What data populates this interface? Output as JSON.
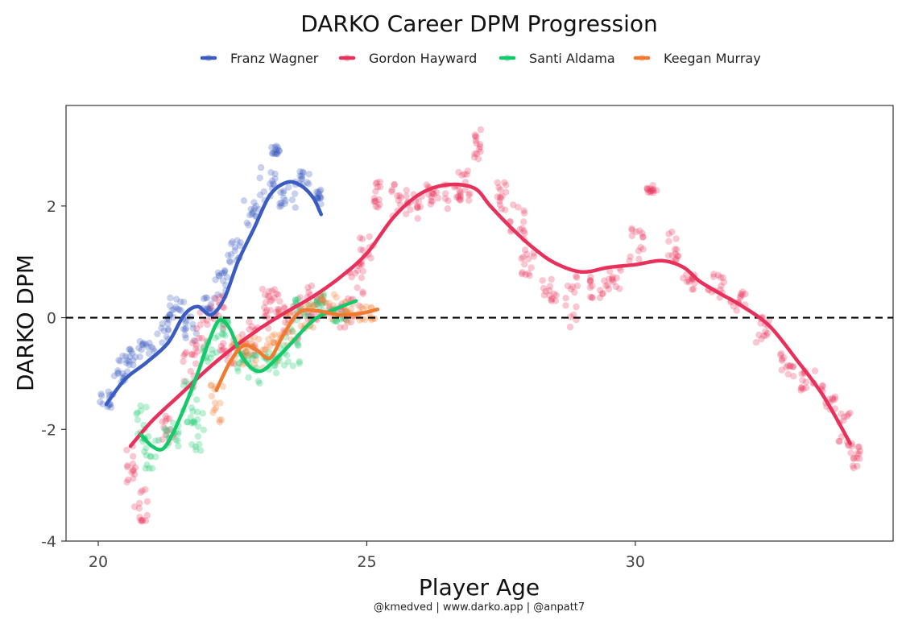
{
  "caption": "@kmedved | www.darko.app | @anpatt7",
  "chart_data": {
    "type": "scatter",
    "title": "DARKO Career DPM Progression",
    "xlabel": "Player Age",
    "ylabel": "DARKO DPM",
    "xlim": [
      19.4,
      34.8
    ],
    "ylim": [
      -4,
      3.8
    ],
    "x_ticks": [
      20,
      25,
      30
    ],
    "y_ticks": [
      -4,
      -2,
      0,
      2
    ],
    "x_tick_labels": [
      "20",
      "25",
      "30"
    ],
    "y_tick_labels": [
      "-4",
      "-2",
      "0",
      "2"
    ],
    "reference_line": {
      "y": 0,
      "style": "dashed"
    },
    "grid": false,
    "legend_position": "top",
    "series": [
      {
        "name": "Franz Wagner",
        "color": "#3A5BBF",
        "smooth": [
          [
            20.15,
            -1.55
          ],
          [
            20.5,
            -1.1
          ],
          [
            20.9,
            -0.8
          ],
          [
            21.3,
            -0.45
          ],
          [
            21.6,
            0.05
          ],
          [
            21.85,
            0.2
          ],
          [
            22.1,
            0.05
          ],
          [
            22.35,
            0.35
          ],
          [
            22.6,
            1.0
          ],
          [
            22.9,
            1.6
          ],
          [
            23.2,
            2.2
          ],
          [
            23.5,
            2.42
          ],
          [
            23.75,
            2.38
          ],
          [
            24.0,
            2.15
          ],
          [
            24.15,
            1.85
          ]
        ],
        "clusters": [
          [
            20.15,
            -1.5,
            0.35,
            0.3
          ],
          [
            20.4,
            -0.95,
            0.5,
            0.3
          ],
          [
            20.6,
            -0.7,
            0.3,
            0.3
          ],
          [
            20.9,
            -0.6,
            0.4,
            0.3
          ],
          [
            21.25,
            -0.2,
            0.5,
            0.3
          ],
          [
            21.45,
            0.2,
            0.4,
            0.3
          ],
          [
            21.7,
            -0.2,
            0.45,
            0.3
          ],
          [
            22.05,
            0.2,
            0.35,
            0.25
          ],
          [
            22.3,
            0.6,
            0.5,
            0.25
          ],
          [
            22.55,
            1.2,
            0.45,
            0.3
          ],
          [
            22.85,
            1.85,
            0.5,
            0.3
          ],
          [
            23.15,
            2.4,
            0.6,
            0.3
          ],
          [
            23.3,
            3.0,
            0.15,
            0.15
          ],
          [
            23.55,
            2.15,
            0.45,
            0.35
          ],
          [
            23.8,
            2.5,
            0.25,
            0.3
          ],
          [
            24.1,
            2.15,
            0.3,
            0.1
          ]
        ]
      },
      {
        "name": "Gordon Hayward",
        "color": "#E8315A",
        "smooth": [
          [
            20.6,
            -2.3
          ],
          [
            21.0,
            -1.85
          ],
          [
            21.5,
            -1.4
          ],
          [
            22.0,
            -0.95
          ],
          [
            22.5,
            -0.55
          ],
          [
            23.0,
            -0.2
          ],
          [
            23.5,
            0.1
          ],
          [
            24.0,
            0.38
          ],
          [
            24.5,
            0.72
          ],
          [
            25.0,
            1.15
          ],
          [
            25.5,
            1.8
          ],
          [
            26.0,
            2.22
          ],
          [
            26.5,
            2.38
          ],
          [
            27.0,
            2.32
          ],
          [
            27.3,
            2.0
          ],
          [
            27.7,
            1.6
          ],
          [
            28.1,
            1.25
          ],
          [
            28.5,
            0.98
          ],
          [
            29.0,
            0.82
          ],
          [
            29.5,
            0.9
          ],
          [
            30.0,
            0.95
          ],
          [
            30.5,
            1.02
          ],
          [
            30.9,
            0.9
          ],
          [
            31.2,
            0.65
          ],
          [
            31.6,
            0.42
          ],
          [
            32.0,
            0.2
          ],
          [
            32.5,
            -0.15
          ],
          [
            33.0,
            -0.75
          ],
          [
            33.5,
            -1.4
          ],
          [
            34.0,
            -2.25
          ]
        ],
        "clusters": [
          [
            20.6,
            -2.6,
            0.7,
            0.2
          ],
          [
            20.8,
            -3.3,
            0.7,
            0.25
          ],
          [
            21.3,
            -2.0,
            0.5,
            0.25
          ],
          [
            21.7,
            -0.9,
            0.7,
            0.3
          ],
          [
            21.9,
            -0.3,
            0.8,
            0.3
          ],
          [
            22.2,
            0.1,
            0.6,
            0.3
          ],
          [
            22.4,
            -0.6,
            0.5,
            0.3
          ],
          [
            22.8,
            -0.4,
            0.7,
            0.3
          ],
          [
            23.05,
            0.2,
            0.8,
            0.3
          ],
          [
            23.35,
            0.3,
            0.6,
            0.3
          ],
          [
            23.6,
            -0.1,
            0.7,
            0.3
          ],
          [
            23.9,
            0.3,
            0.7,
            0.3
          ],
          [
            24.2,
            0.2,
            0.5,
            0.3
          ],
          [
            24.6,
            0.1,
            0.6,
            0.3
          ],
          [
            24.8,
            0.6,
            0.8,
            0.3
          ],
          [
            25.0,
            1.2,
            0.6,
            0.3
          ],
          [
            25.15,
            2.2,
            0.5,
            0.2
          ],
          [
            25.6,
            2.1,
            0.6,
            0.3
          ],
          [
            25.9,
            2.0,
            0.5,
            0.3
          ],
          [
            26.2,
            2.2,
            0.4,
            0.3
          ],
          [
            26.6,
            2.2,
            0.5,
            0.35
          ],
          [
            26.85,
            2.35,
            0.6,
            0.3
          ],
          [
            27.05,
            3.1,
            0.6,
            0.15
          ],
          [
            27.5,
            2.2,
            0.6,
            0.2
          ],
          [
            27.8,
            1.7,
            0.7,
            0.3
          ],
          [
            28.0,
            1.0,
            0.5,
            0.25
          ],
          [
            28.4,
            0.5,
            0.4,
            0.3
          ],
          [
            28.8,
            0.3,
            1.0,
            0.3
          ],
          [
            29.3,
            0.55,
            0.4,
            0.3
          ],
          [
            29.6,
            0.7,
            0.4,
            0.3
          ],
          [
            30.0,
            1.3,
            0.6,
            0.3
          ],
          [
            30.3,
            2.3,
            0.15,
            0.2
          ],
          [
            30.7,
            1.3,
            0.6,
            0.2
          ],
          [
            31.0,
            0.65,
            0.3,
            0.3
          ],
          [
            31.5,
            0.6,
            0.5,
            0.3
          ],
          [
            31.9,
            0.3,
            0.4,
            0.3
          ],
          [
            32.4,
            -0.2,
            0.5,
            0.3
          ],
          [
            32.8,
            -0.8,
            0.5,
            0.3
          ],
          [
            33.2,
            -1.1,
            0.4,
            0.3
          ],
          [
            33.6,
            -1.4,
            0.5,
            0.3
          ],
          [
            33.9,
            -2.0,
            0.6,
            0.3
          ],
          [
            34.1,
            -2.5,
            0.4,
            0.2
          ]
        ]
      },
      {
        "name": "Santi Aldama",
        "color": "#14C96A",
        "smooth": [
          [
            20.8,
            -2.1
          ],
          [
            21.0,
            -2.3
          ],
          [
            21.2,
            -2.35
          ],
          [
            21.4,
            -2.05
          ],
          [
            21.65,
            -1.5
          ],
          [
            21.85,
            -1.0
          ],
          [
            22.05,
            -0.45
          ],
          [
            22.25,
            -0.05
          ],
          [
            22.45,
            -0.2
          ],
          [
            22.65,
            -0.65
          ],
          [
            22.85,
            -0.9
          ],
          [
            23.05,
            -0.95
          ],
          [
            23.3,
            -0.75
          ],
          [
            23.6,
            -0.45
          ],
          [
            24.0,
            -0.05
          ],
          [
            24.4,
            0.15
          ],
          [
            24.8,
            0.3
          ]
        ],
        "clusters": [
          [
            20.8,
            -1.9,
            0.7,
            0.2
          ],
          [
            21.0,
            -2.4,
            0.6,
            0.3
          ],
          [
            21.35,
            -2.1,
            0.5,
            0.3
          ],
          [
            21.7,
            -1.5,
            0.8,
            0.3
          ],
          [
            21.85,
            -2.0,
            0.8,
            0.25
          ],
          [
            22.1,
            -0.6,
            0.6,
            0.3
          ],
          [
            22.3,
            -0.2,
            0.4,
            0.25
          ],
          [
            22.7,
            -0.8,
            0.6,
            0.3
          ],
          [
            23.0,
            -0.9,
            0.6,
            0.3
          ],
          [
            23.3,
            -0.7,
            0.6,
            0.3
          ],
          [
            23.6,
            -0.6,
            0.8,
            0.3
          ],
          [
            23.8,
            0.1,
            0.6,
            0.3
          ],
          [
            24.1,
            0.2,
            0.5,
            0.3
          ],
          [
            24.5,
            0.1,
            0.4,
            0.3
          ]
        ]
      },
      {
        "name": "Keegan Murray",
        "color": "#F07A30",
        "smooth": [
          [
            22.2,
            -1.3
          ],
          [
            22.45,
            -0.8
          ],
          [
            22.7,
            -0.5
          ],
          [
            22.95,
            -0.58
          ],
          [
            23.2,
            -0.72
          ],
          [
            23.45,
            -0.3
          ],
          [
            23.75,
            0.1
          ],
          [
            24.1,
            0.12
          ],
          [
            24.5,
            0.05
          ],
          [
            24.9,
            0.08
          ],
          [
            25.2,
            0.15
          ]
        ],
        "clusters": [
          [
            22.2,
            -1.5,
            0.8,
            0.25
          ],
          [
            22.6,
            -0.6,
            0.5,
            0.3
          ],
          [
            22.9,
            -0.6,
            0.5,
            0.3
          ],
          [
            23.2,
            -0.6,
            0.6,
            0.3
          ],
          [
            23.5,
            -0.2,
            0.6,
            0.3
          ],
          [
            23.9,
            0.0,
            0.5,
            0.3
          ],
          [
            24.3,
            0.2,
            0.5,
            0.3
          ],
          [
            24.7,
            0.1,
            0.4,
            0.3
          ],
          [
            25.0,
            0.1,
            0.3,
            0.3
          ]
        ]
      }
    ]
  }
}
